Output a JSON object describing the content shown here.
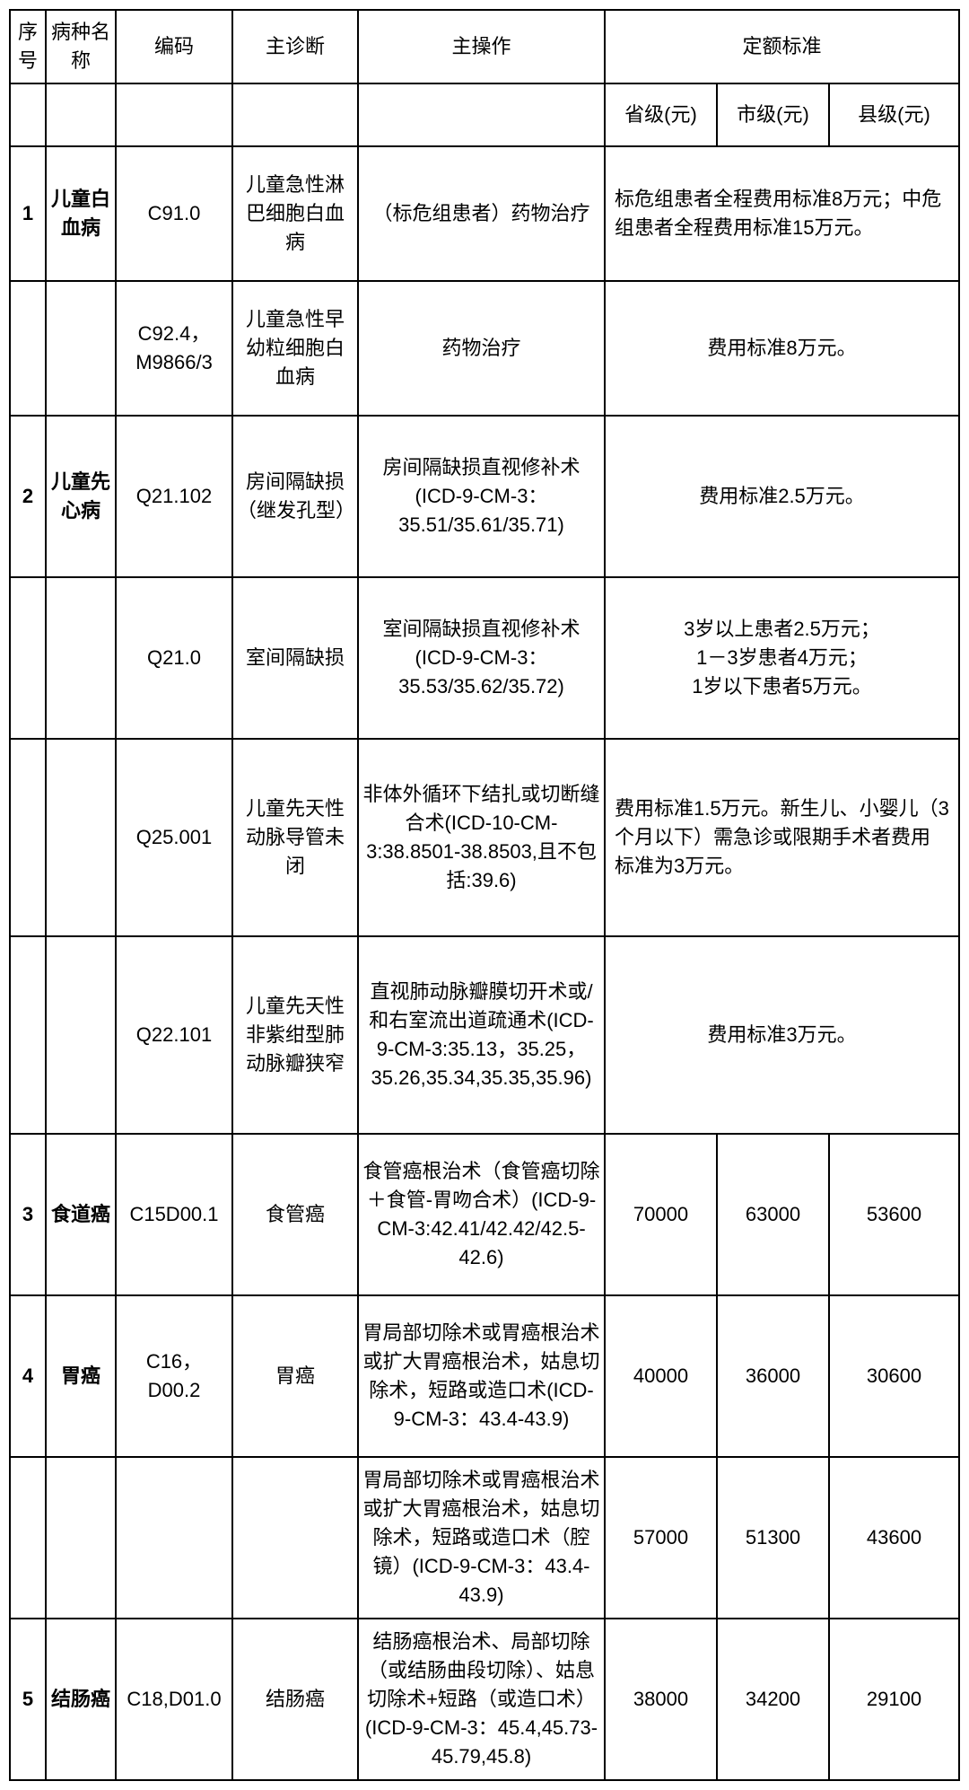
{
  "headers": {
    "seq": "序号",
    "disease_name": "病种名称",
    "code": "编码",
    "main_diagnosis": "主诊断",
    "main_operation": "主操作",
    "fixed_standard": "定额标准",
    "province_level": "省级(元)",
    "city_level": "市级(元)",
    "county_level": "县级(元)"
  },
  "rows": [
    {
      "seq": "1",
      "name": "儿童白血病",
      "code": "C91.0",
      "diagnosis": "儿童急性淋巴细胞白血病",
      "operation": "（标危组患者）药物治疗",
      "standard_merged": "标危组患者全程费用标准8万元；中危组患者全程费用标准15万元。"
    },
    {
      "seq": "",
      "name": "",
      "code": "C92.4，M9866/3",
      "diagnosis": "儿童急性早幼粒细胞白血病",
      "operation": "药物治疗",
      "standard_merged": "费用标准8万元。"
    },
    {
      "seq": "2",
      "name": "儿童先心病",
      "code": "Q21.102",
      "diagnosis": "房间隔缺损（继发孔型）",
      "operation": "房间隔缺损直视修补术(ICD-9-CM-3：35.51/35.61/35.71)",
      "standard_merged": "费用标准2.5万元。"
    },
    {
      "seq": "",
      "name": "",
      "code": "Q21.0",
      "diagnosis": "室间隔缺损",
      "operation": "室间隔缺损直视修补术(ICD-9-CM-3：35.53/35.62/35.72)",
      "standard_merged": "3岁以上患者2.5万元；\n1－3岁患者4万元；\n1岁以下患者5万元。"
    },
    {
      "seq": "",
      "name": "",
      "code": "Q25.001",
      "diagnosis": "儿童先天性动脉导管未闭",
      "operation": "非体外循环下结扎或切断缝合术(ICD-10-CM-3:38.8501-38.8503,且不包括:39.6)",
      "standard_merged": "费用标准1.5万元。新生儿、小婴儿（3个月以下）需急诊或限期手术者费用标准为3万元。"
    },
    {
      "seq": "",
      "name": "",
      "code": "Q22.101",
      "diagnosis": "儿童先天性非紫绀型肺动脉瓣狭窄",
      "operation": "直视肺动脉瓣膜切开术或/和右室流出道疏通术(ICD-9-CM-3:35.13，35.25，35.26,35.34,35.35,35.96)",
      "standard_merged": "费用标准3万元。"
    },
    {
      "seq": "3",
      "name": "食道癌",
      "code": "C15D00.1",
      "diagnosis": "食管癌",
      "operation": "食管癌根治术（食管癌切除＋食管-胃吻合术）(ICD-9-CM-3:42.41/42.42/42.5-42.6)",
      "province": "70000",
      "city": "63000",
      "county": "53600"
    },
    {
      "seq": "4",
      "name": "胃癌",
      "code": "C16，D00.2",
      "diagnosis": "胃癌",
      "operation": "胃局部切除术或胃癌根治术或扩大胃癌根治术，姑息切除术，短路或造口术(ICD-9-CM-3：43.4-43.9)",
      "province": "40000",
      "city": "36000",
      "county": "30600"
    },
    {
      "seq": "",
      "name": "",
      "code": "",
      "diagnosis": "",
      "operation": "胃局部切除术或胃癌根治术或扩大胃癌根治术，姑息切除术，短路或造口术（腔镜）(ICD-9-CM-3：43.4-43.9)",
      "province": "57000",
      "city": "51300",
      "county": "43600"
    },
    {
      "seq": "5",
      "name": "结肠癌",
      "code": "C18,D01.0",
      "diagnosis": "结肠癌",
      "operation": "结肠癌根治术、局部切除（或结肠曲段切除）、姑息切除术+短路（或造口术）(ICD-9-CM-3：45.4,45.73-45.79,45.8)",
      "province": "38000",
      "city": "34200",
      "county": "29100"
    }
  ],
  "styling": {
    "border_color": "#000000",
    "background_color": "#ffffff",
    "text_color": "#000000",
    "base_font_size": 22,
    "border_width": 2
  }
}
